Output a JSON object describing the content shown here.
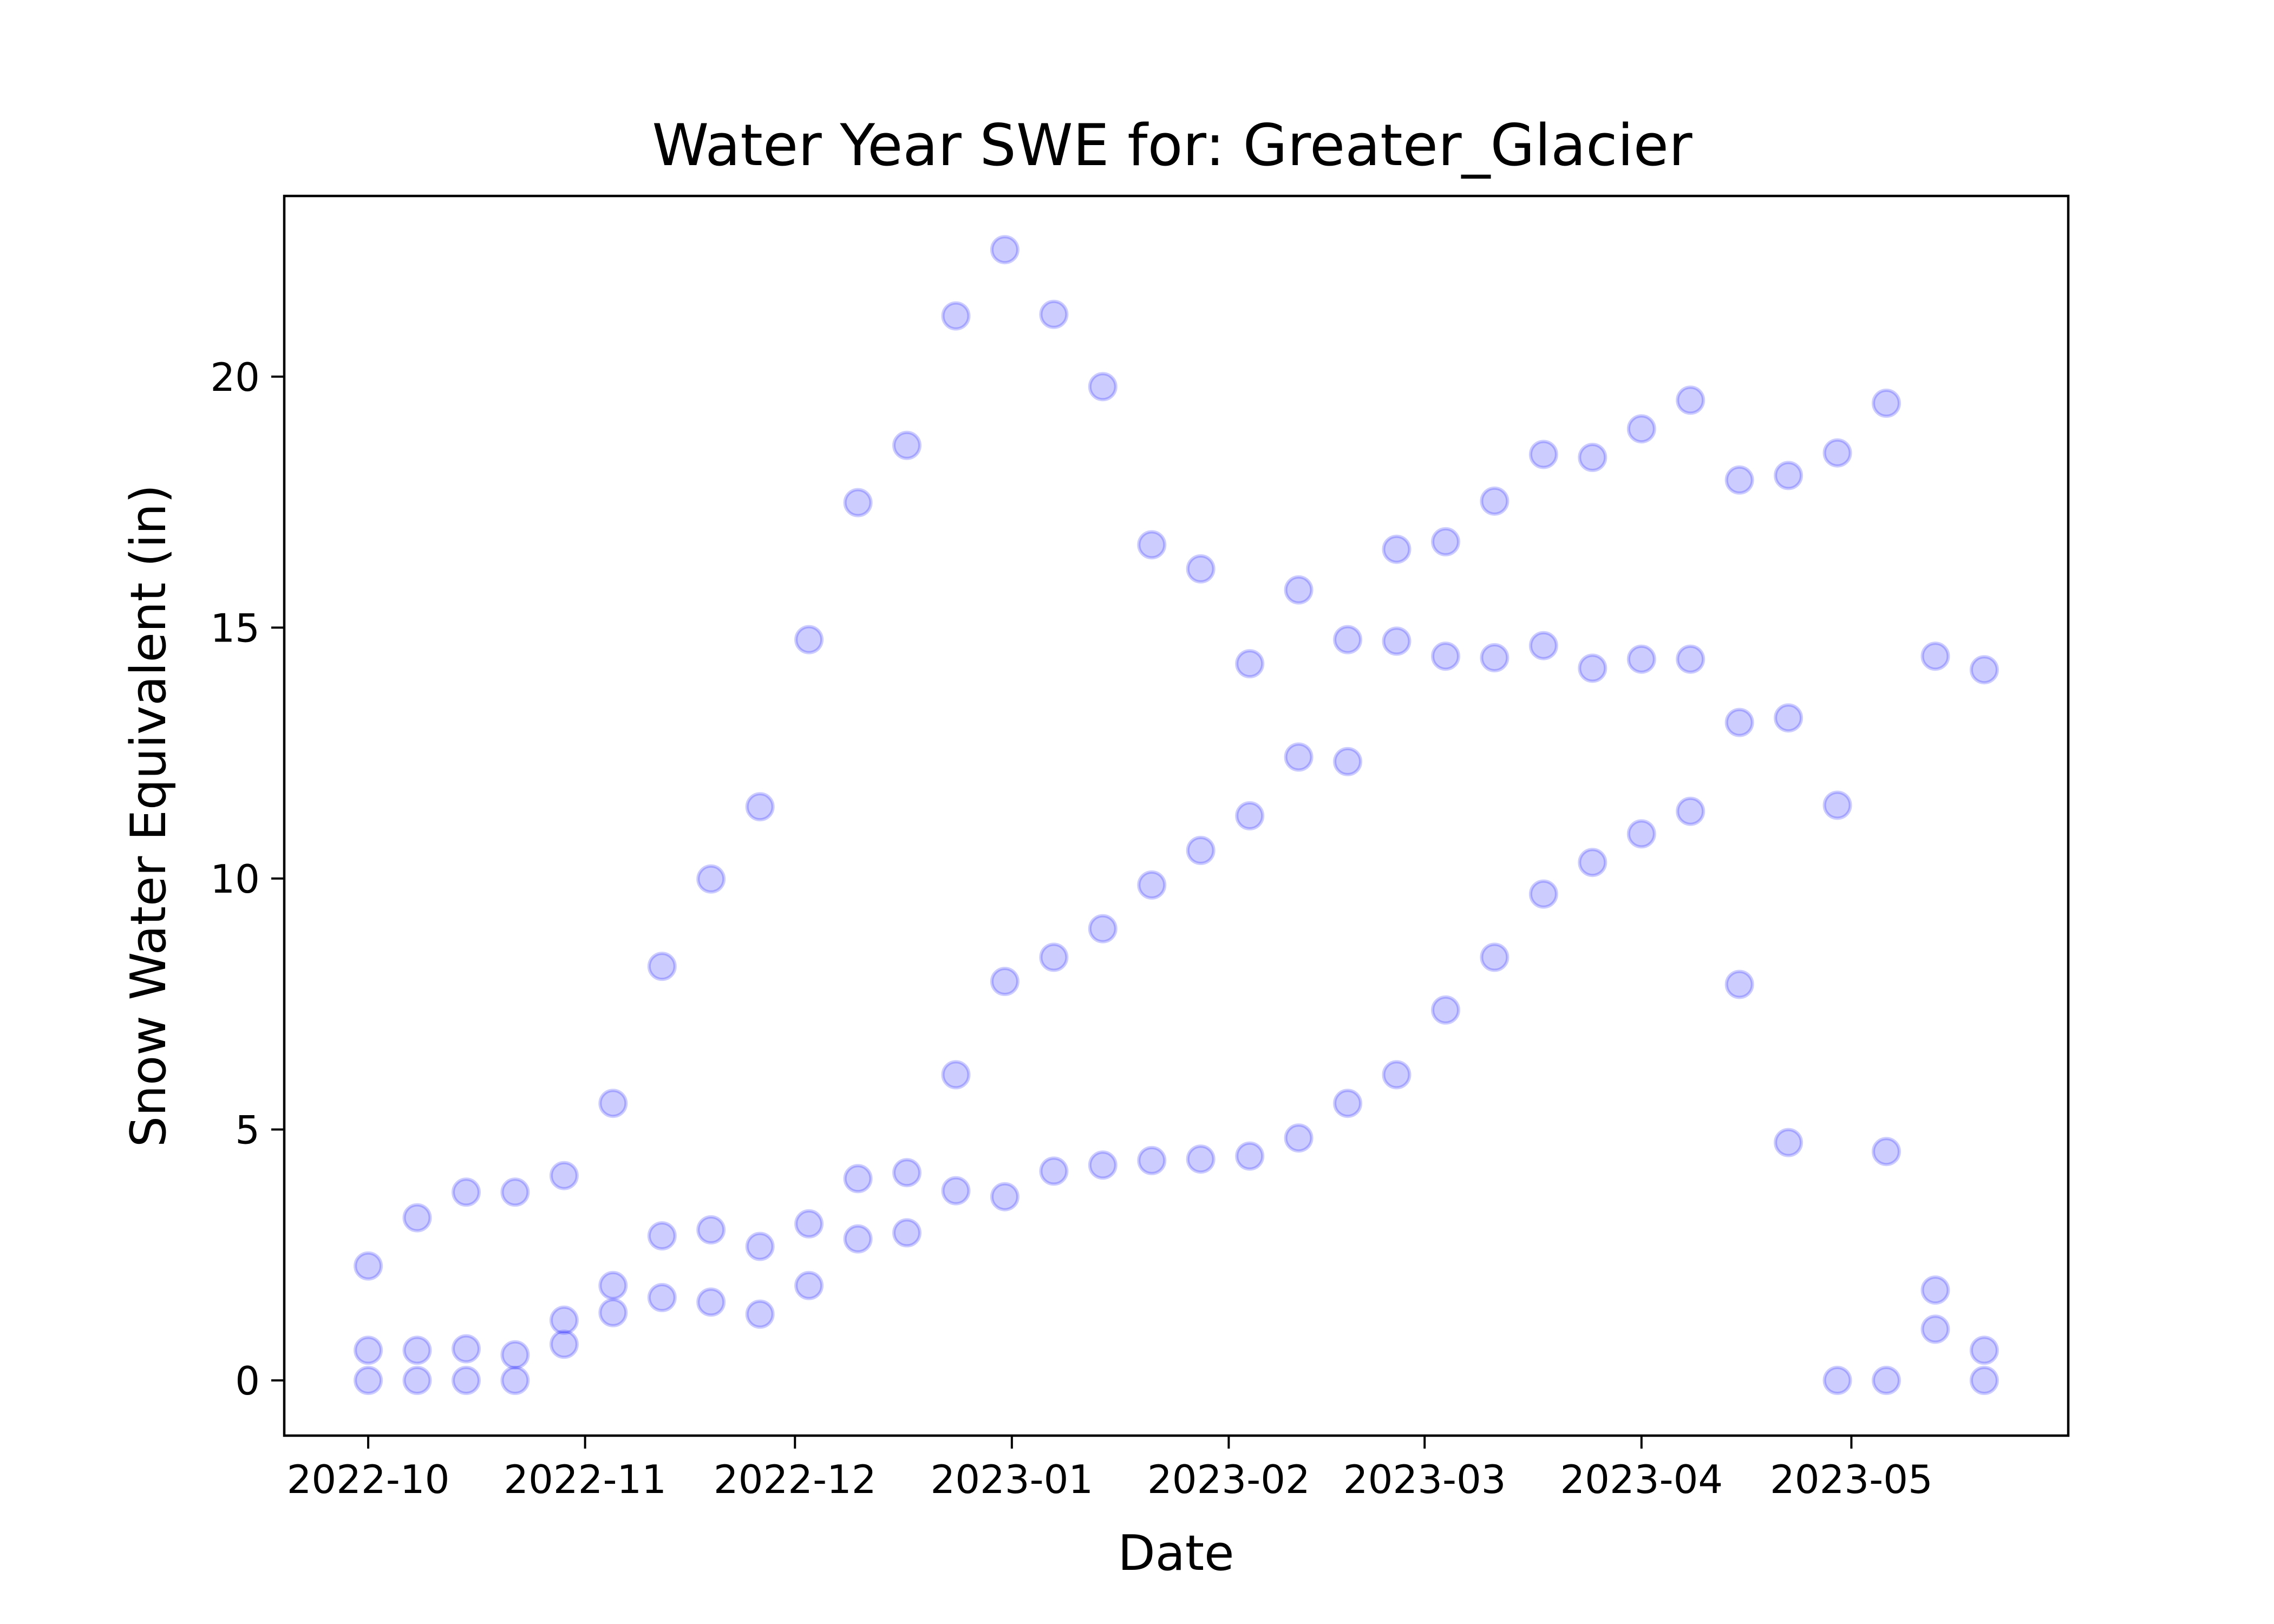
{
  "chart_data": {
    "type": "scatter",
    "title": "Water Year SWE for: Greater_Glacier",
    "xlabel": "Date",
    "ylabel": "Snow Water Equivalent (in)",
    "x_tick_labels": [
      "2022-10",
      "2022-11",
      "2022-12",
      "2023-01",
      "2023-02",
      "2023-03",
      "2023-04",
      "2023-05"
    ],
    "x_ticks": [
      "2022-10-01",
      "2022-11-01",
      "2022-12-01",
      "2023-01-01",
      "2023-02-01",
      "2023-03-01",
      "2023-04-01",
      "2023-05-01"
    ],
    "xlim": [
      "2022-09-19",
      "2023-06-01"
    ],
    "y_ticks": [
      0,
      5,
      10,
      15,
      20
    ],
    "ylim": [
      -1.1,
      23.6
    ],
    "grid": false,
    "marker_color": "#0000ff",
    "points": [
      [
        "2022-10-01",
        2.28
      ],
      [
        "2022-10-01",
        0.6
      ],
      [
        "2022-10-01",
        0.0
      ],
      [
        "2022-10-08",
        3.24
      ],
      [
        "2022-10-08",
        0.6
      ],
      [
        "2022-10-08",
        0.0
      ],
      [
        "2022-10-15",
        3.75
      ],
      [
        "2022-10-15",
        0.63
      ],
      [
        "2022-10-15",
        0.0
      ],
      [
        "2022-10-22",
        3.75
      ],
      [
        "2022-10-22",
        0.51
      ],
      [
        "2022-10-22",
        0.0
      ],
      [
        "2022-10-29",
        4.08
      ],
      [
        "2022-10-29",
        1.2
      ],
      [
        "2022-10-29",
        0.72
      ],
      [
        "2022-11-05",
        5.52
      ],
      [
        "2022-11-05",
        1.89
      ],
      [
        "2022-11-05",
        1.35
      ],
      [
        "2022-11-12",
        8.25
      ],
      [
        "2022-11-12",
        2.88
      ],
      [
        "2022-11-12",
        1.65
      ],
      [
        "2022-11-19",
        9.99
      ],
      [
        "2022-11-19",
        3.0
      ],
      [
        "2022-11-19",
        1.56
      ],
      [
        "2022-11-26",
        11.43
      ],
      [
        "2022-11-26",
        2.67
      ],
      [
        "2022-11-26",
        1.32
      ],
      [
        "2022-12-03",
        14.76
      ],
      [
        "2022-12-03",
        3.12
      ],
      [
        "2022-12-03",
        1.89
      ],
      [
        "2022-12-10",
        17.49
      ],
      [
        "2022-12-10",
        4.02
      ],
      [
        "2022-12-10",
        2.82
      ],
      [
        "2022-12-17",
        18.63
      ],
      [
        "2022-12-17",
        4.14
      ],
      [
        "2022-12-17",
        2.94
      ],
      [
        "2022-12-24",
        21.21
      ],
      [
        "2022-12-24",
        6.09
      ],
      [
        "2022-12-24",
        3.78
      ],
      [
        "2022-12-31",
        22.53
      ],
      [
        "2022-12-31",
        7.95
      ],
      [
        "2022-12-31",
        3.66
      ],
      [
        "2023-01-07",
        21.24
      ],
      [
        "2023-01-07",
        8.43
      ],
      [
        "2023-01-07",
        4.17
      ],
      [
        "2023-01-14",
        19.8
      ],
      [
        "2023-01-14",
        9.0
      ],
      [
        "2023-01-14",
        4.29
      ],
      [
        "2023-01-21",
        16.65
      ],
      [
        "2023-01-21",
        9.87
      ],
      [
        "2023-01-21",
        4.38
      ],
      [
        "2023-01-28",
        16.17
      ],
      [
        "2023-01-28",
        10.56
      ],
      [
        "2023-01-28",
        4.41
      ],
      [
        "2023-02-04",
        14.28
      ],
      [
        "2023-02-04",
        11.25
      ],
      [
        "2023-02-04",
        4.47
      ],
      [
        "2023-02-11",
        15.75
      ],
      [
        "2023-02-11",
        12.42
      ],
      [
        "2023-02-11",
        4.83
      ],
      [
        "2023-02-18",
        14.76
      ],
      [
        "2023-02-18",
        12.33
      ],
      [
        "2023-02-18",
        5.52
      ],
      [
        "2023-02-25",
        16.56
      ],
      [
        "2023-02-25",
        14.73
      ],
      [
        "2023-02-25",
        6.09
      ],
      [
        "2023-03-04",
        16.71
      ],
      [
        "2023-03-04",
        14.43
      ],
      [
        "2023-03-04",
        7.38
      ],
      [
        "2023-03-11",
        17.52
      ],
      [
        "2023-03-11",
        14.4
      ],
      [
        "2023-03-11",
        8.43
      ],
      [
        "2023-03-18",
        18.45
      ],
      [
        "2023-03-18",
        14.64
      ],
      [
        "2023-03-18",
        9.69
      ],
      [
        "2023-03-25",
        18.39
      ],
      [
        "2023-03-25",
        14.19
      ],
      [
        "2023-03-25",
        10.32
      ],
      [
        "2023-04-01",
        18.96
      ],
      [
        "2023-04-01",
        14.37
      ],
      [
        "2023-04-01",
        10.89
      ],
      [
        "2023-04-08",
        19.53
      ],
      [
        "2023-04-08",
        14.37
      ],
      [
        "2023-04-08",
        11.34
      ],
      [
        "2023-04-15",
        17.94
      ],
      [
        "2023-04-15",
        13.11
      ],
      [
        "2023-04-15",
        7.89
      ],
      [
        "2023-04-22",
        18.03
      ],
      [
        "2023-04-22",
        13.2
      ],
      [
        "2023-04-22",
        4.74
      ],
      [
        "2023-04-29",
        18.48
      ],
      [
        "2023-04-29",
        11.46
      ],
      [
        "2023-04-29",
        0.0
      ],
      [
        "2023-05-06",
        19.47
      ],
      [
        "2023-05-06",
        4.56
      ],
      [
        "2023-05-06",
        0.0
      ],
      [
        "2023-05-13",
        14.43
      ],
      [
        "2023-05-13",
        1.8
      ],
      [
        "2023-05-13",
        1.02
      ],
      [
        "2023-05-20",
        14.16
      ],
      [
        "2023-05-20",
        0.6
      ],
      [
        "2023-05-20",
        0.0
      ]
    ]
  }
}
